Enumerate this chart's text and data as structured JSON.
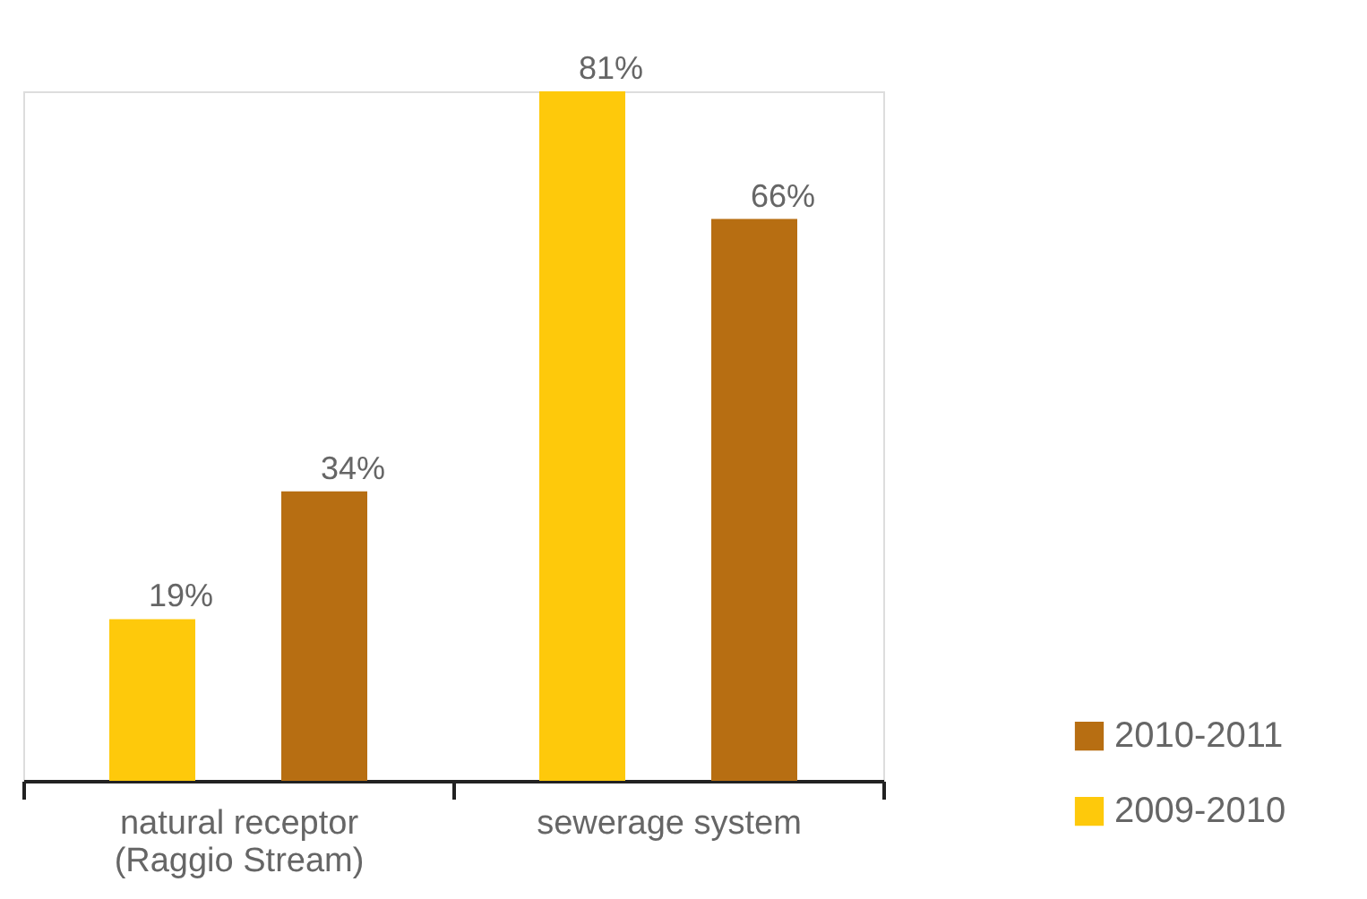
{
  "chart_data": {
    "type": "bar",
    "categories": [
      "natural receptor\n(Raggio Stream)",
      "sewerage system"
    ],
    "series": [
      {
        "name": "2009-2010",
        "color": "#fec90b",
        "values": [
          19,
          81
        ],
        "value_labels": [
          "19%",
          "81%"
        ]
      },
      {
        "name": "2010-2011",
        "color": "#b76e12",
        "values": [
          34,
          66
        ],
        "value_labels": [
          "34%",
          "66%"
        ]
      }
    ],
    "legend": "bottom right"
  }
}
